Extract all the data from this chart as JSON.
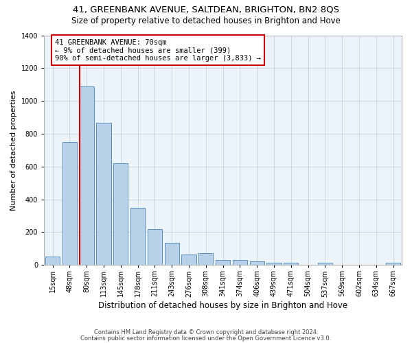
{
  "title": "41, GREENBANK AVENUE, SALTDEAN, BRIGHTON, BN2 8QS",
  "subtitle": "Size of property relative to detached houses in Brighton and Hove",
  "xlabel": "Distribution of detached houses by size in Brighton and Hove",
  "ylabel": "Number of detached properties",
  "footer1": "Contains HM Land Registry data © Crown copyright and database right 2024.",
  "footer2": "Contains public sector information licensed under the Open Government Licence v3.0.",
  "categories": [
    "15sqm",
    "48sqm",
    "80sqm",
    "113sqm",
    "145sqm",
    "178sqm",
    "211sqm",
    "243sqm",
    "276sqm",
    "308sqm",
    "341sqm",
    "374sqm",
    "406sqm",
    "439sqm",
    "471sqm",
    "504sqm",
    "537sqm",
    "569sqm",
    "602sqm",
    "634sqm",
    "667sqm"
  ],
  "values": [
    50,
    750,
    1090,
    865,
    620,
    350,
    220,
    135,
    65,
    70,
    30,
    30,
    22,
    15,
    12,
    0,
    12,
    0,
    0,
    0,
    12
  ],
  "bar_color": "#b8d0e8",
  "bar_edge_color": "#5a8fc0",
  "red_line_x": 1.575,
  "annotation_text": "41 GREENBANK AVENUE: 70sqm\n← 9% of detached houses are smaller (399)\n90% of semi-detached houses are larger (3,833) →",
  "annotation_box_facecolor": "#ffffff",
  "annotation_box_edgecolor": "#cc0000",
  "ylim_max": 1400,
  "yticks": [
    0,
    200,
    400,
    600,
    800,
    1000,
    1200,
    1400
  ],
  "axes_bg_color": "#edf3fa",
  "grid_color": "#c8cfd8",
  "title_fontsize": 9.5,
  "subtitle_fontsize": 8.5,
  "ylabel_fontsize": 8,
  "xlabel_fontsize": 8.5,
  "tick_fontsize": 7,
  "annot_fontsize": 7.5,
  "footer_fontsize": 6
}
